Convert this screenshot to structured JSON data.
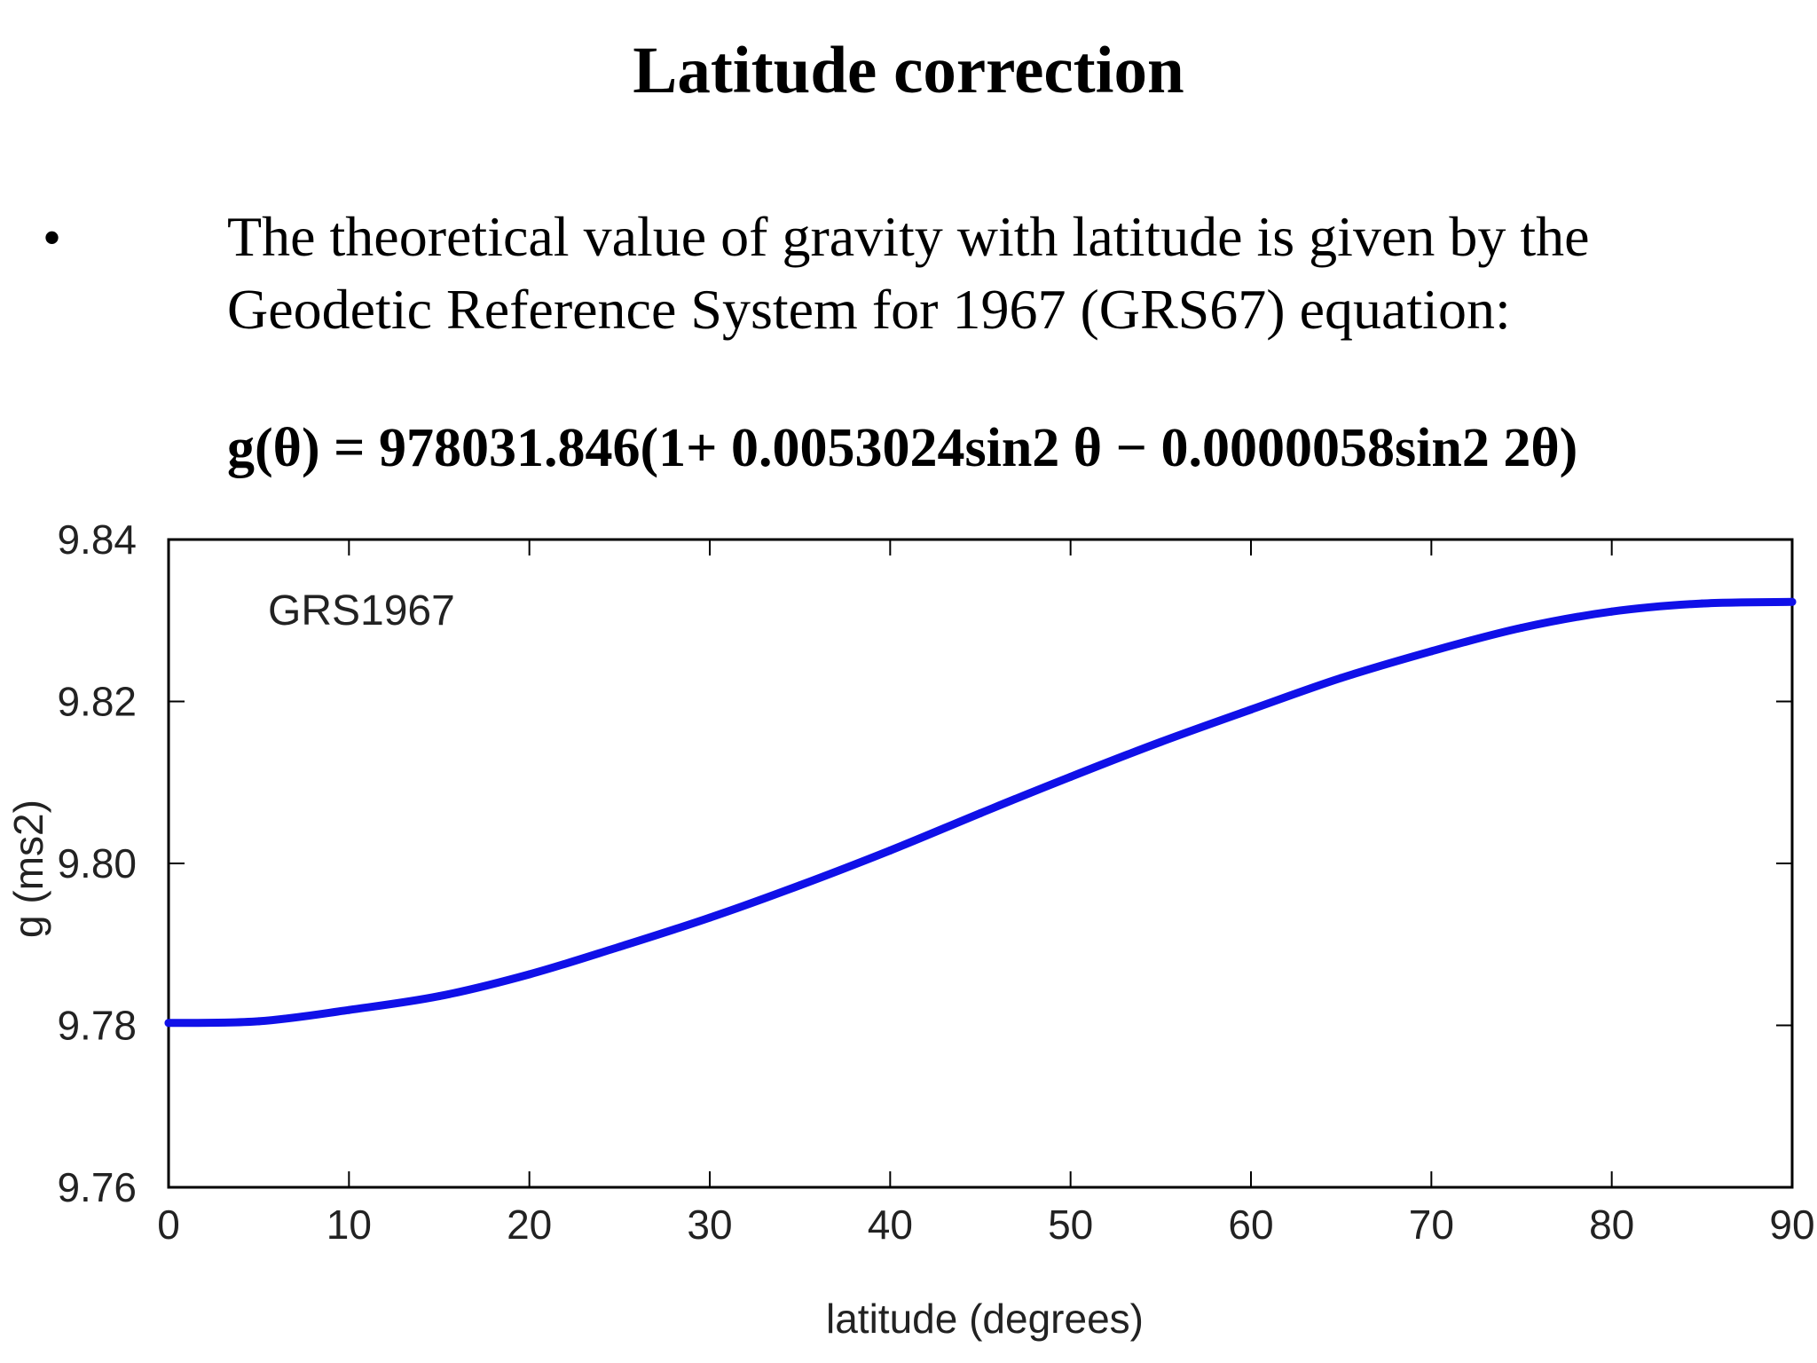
{
  "slide": {
    "title": "Latitude correction",
    "bullet": "•",
    "body_line1": "The theoretical value of gravity with latitude is given by the",
    "body_line2": "Geodetic Reference System for 1967 (GRS67) equation:",
    "equation": "g(θ) = 978031.846(1+ 0.0053024sin2 θ − 0.0000058sin2 2θ)"
  },
  "chart_data": {
    "type": "line",
    "title": "",
    "xlabel": "latitude (degrees)",
    "ylabel": "g (ms2)",
    "annotation": "GRS1967",
    "xlim": [
      0,
      90
    ],
    "ylim": [
      9.76,
      9.84
    ],
    "xticks": [
      0,
      10,
      20,
      30,
      40,
      50,
      60,
      70,
      80,
      90
    ],
    "yticks": [
      9.76,
      9.78,
      9.8,
      9.82,
      9.84
    ],
    "ytick_labels": [
      "9.76",
      "9.78",
      "9.80",
      "9.82",
      "9.84"
    ],
    "grid": false,
    "series": [
      {
        "color": "#1010e8",
        "x": [
          0,
          5,
          10,
          15,
          20,
          25,
          30,
          35,
          40,
          45,
          50,
          55,
          60,
          65,
          70,
          75,
          80,
          85,
          90
        ],
        "y": [
          9.7803,
          9.7805,
          9.7819,
          9.7836,
          9.7863,
          9.7897,
          9.7933,
          9.7973,
          9.8016,
          9.8062,
          9.8107,
          9.815,
          9.819,
          9.8229,
          9.8262,
          9.8291,
          9.8311,
          9.8321,
          9.8323
        ]
      }
    ]
  }
}
